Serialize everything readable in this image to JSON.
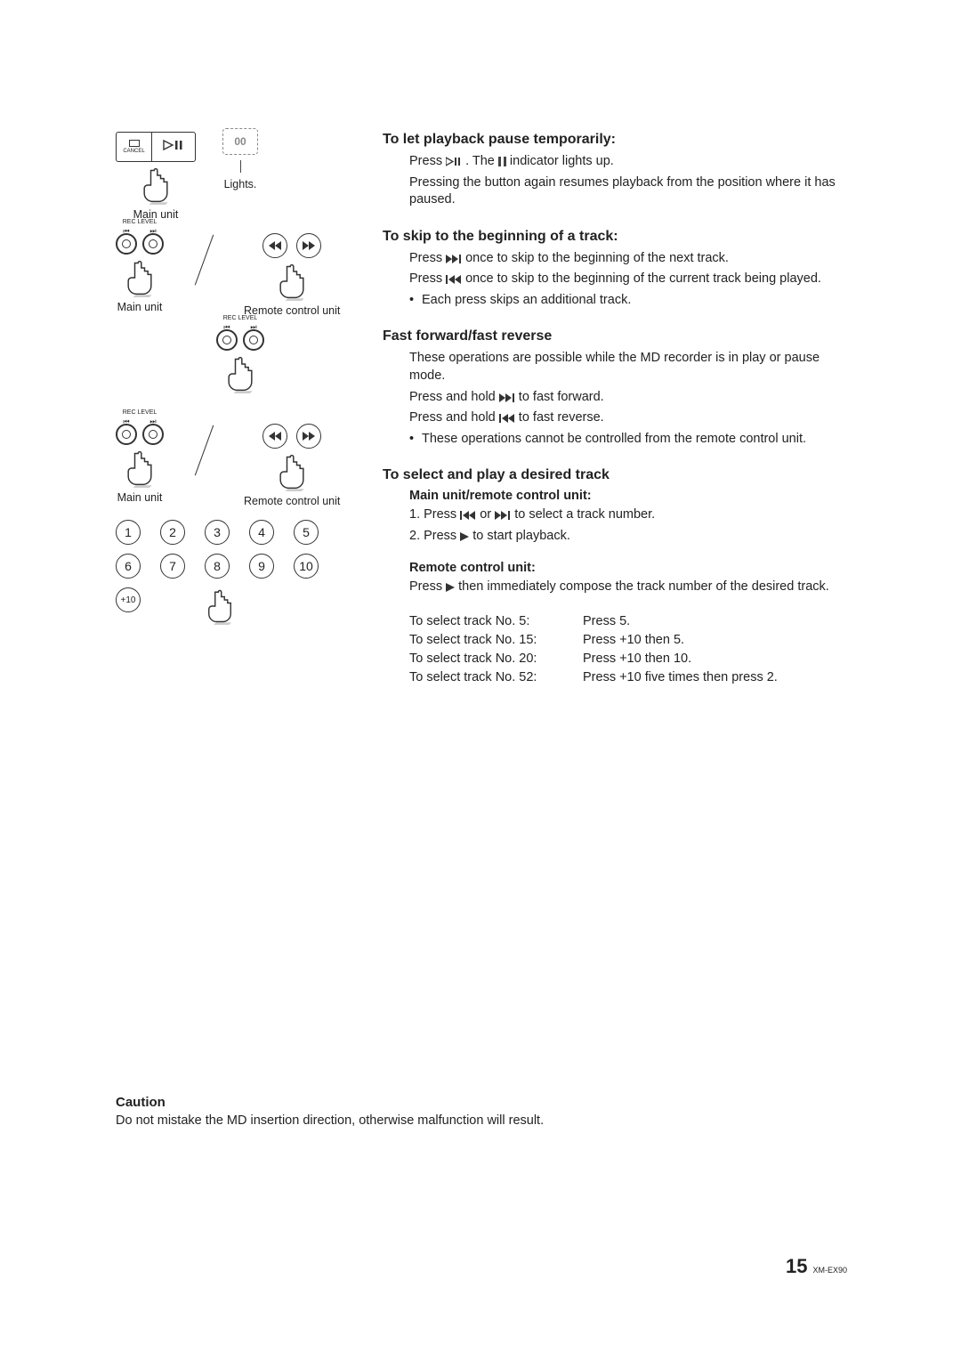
{
  "labels": {
    "lights": "Lights.",
    "main_unit": "Main unit",
    "remote_control_unit": "Remote control unit",
    "rec_level": "REC LEVEL",
    "cancel": "CANCEL"
  },
  "sections": {
    "pause": {
      "title": "To let playback pause temporarily:",
      "line1_a": "Press ",
      "line1_b": ". The ",
      "line1_c": " indicator lights up.",
      "line2": "Pressing the button again resumes playback from the position where it has paused."
    },
    "skip": {
      "title": "To skip to the beginning of a track:",
      "line1_a": "Press ",
      "line1_b": " once to skip to the beginning of the next track.",
      "line2_a": "Press ",
      "line2_b": " once to skip to the beginning of the current track being played.",
      "bullet": "Each press skips an additional track."
    },
    "ff": {
      "title": "Fast forward/fast reverse",
      "line1": "These operations are possible while the MD recorder is in play or pause mode.",
      "line2_a": "Press and hold ",
      "line2_b": " to fast forward.",
      "line3_a": "Press and hold ",
      "line3_b": " to fast reverse.",
      "bullet": "These operations cannot be controlled from the remote control unit."
    },
    "select": {
      "title": "To select and play a desired track",
      "sub1": "Main unit/remote control unit:",
      "step1_a": "1. Press ",
      "step1_mid": " or ",
      "step1_b": " to select a track number.",
      "step2_a": "2. Press ",
      "step2_b": " to start playback.",
      "sub2": "Remote control unit:",
      "line_remote_a": "Press ",
      "line_remote_b": " then immediately compose the track number of the desired track."
    },
    "track_examples": {
      "r1l": "To select track No. 5:",
      "r1r": "Press 5.",
      "r2l": "To select track No. 15:",
      "r2r": "Press +10 then 5.",
      "r3l": "To select track No. 20:",
      "r3r": "Press +10 then 10.",
      "r4l": "To select track No. 52:",
      "r4r": "Press +10 five times then press 2."
    }
  },
  "numpad": [
    "1",
    "2",
    "3",
    "4",
    "5",
    "6",
    "7",
    "8",
    "9",
    "10"
  ],
  "plus10": "+10",
  "caution": {
    "title": "Caution",
    "text": "Do not mistake the MD insertion direction, otherwise malfunction will result."
  },
  "page": {
    "num": "15",
    "model": "XM-EX90"
  },
  "pause_glyph": "00",
  "colors": {
    "text": "#222222",
    "muted": "#888888",
    "bg": "#ffffff"
  }
}
